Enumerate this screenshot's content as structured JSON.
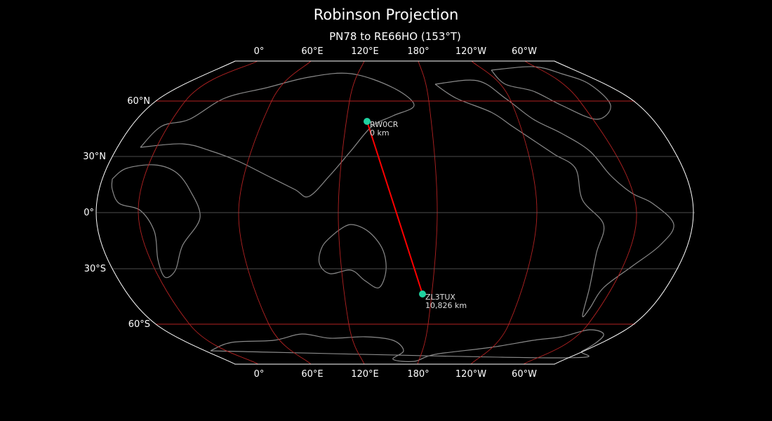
{
  "title": "Robinson Projection",
  "subtitle": "PN78 to RE66HO (153°T)",
  "lon_labels": [
    "0°",
    "60°E",
    "120°E",
    "180°",
    "120°W",
    "60°W"
  ],
  "lat_labels": [
    "60°N",
    "30°N",
    "0°",
    "30°S",
    "60°S"
  ],
  "stations": [
    {
      "call": "RW0CR",
      "distance": "0 km"
    },
    {
      "call": "ZL3TUX",
      "distance": "10,826 km"
    }
  ],
  "colors": {
    "background": "#000000",
    "outline": "#ffffff",
    "coastline": "#8a8a8a",
    "graticule_major": "#b22222",
    "graticule_minor": "#666666",
    "path": "#ff0000",
    "station": "#1fd1a0"
  }
}
